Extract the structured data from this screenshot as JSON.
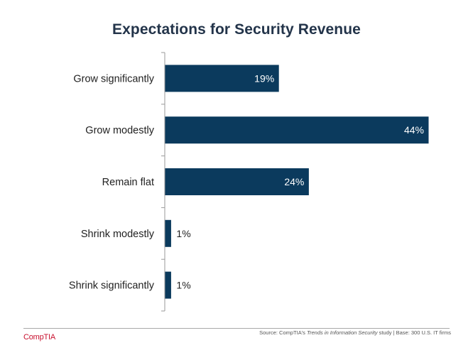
{
  "chart_data": {
    "type": "bar",
    "orientation": "horizontal",
    "title": "Expectations for Security Revenue",
    "categories": [
      "Grow significantly",
      "Grow modestly",
      "Remain flat",
      "Shrink modestly",
      "Shrink significantly"
    ],
    "values": [
      19,
      44,
      24,
      1,
      1
    ],
    "value_labels": [
      "19%",
      "44%",
      "24%",
      "1%",
      "1%"
    ],
    "value_unit": "%",
    "xlim": [
      0,
      44
    ],
    "xlabel": "",
    "ylabel": "",
    "grid": false,
    "bar_color": "#0b3a5d"
  },
  "footer": {
    "source_prefix": "Source: CompTIA's ",
    "source_italic": "Trends in Information Security",
    "source_suffix": " study | Base: 300 U.S. IT firms",
    "brand": "CompTIA"
  },
  "colors": {
    "bar": "#0b3a5d",
    "label_inside": "#ffffff",
    "label_outside": "#1f1f1f",
    "brand": "#c8102e"
  }
}
